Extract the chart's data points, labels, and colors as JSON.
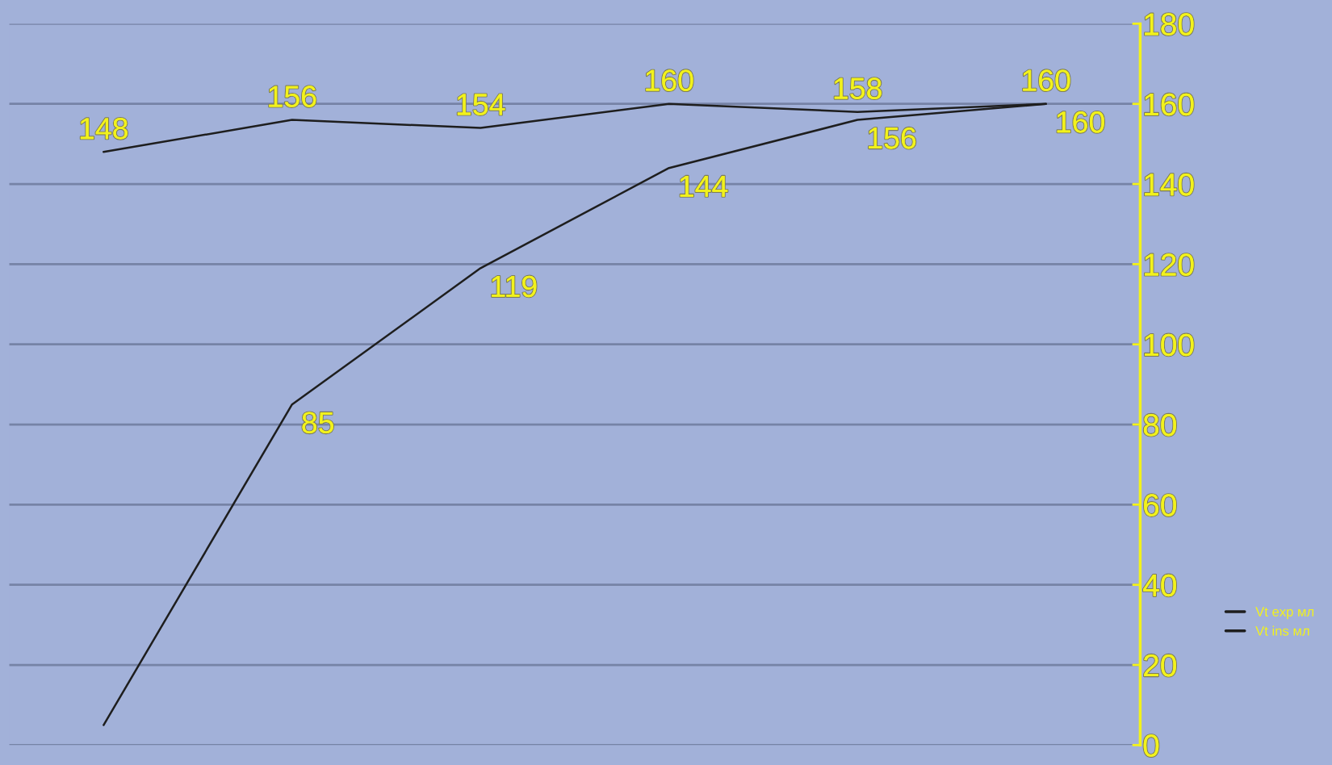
{
  "chart_data": {
    "type": "line",
    "categories": [
      null,
      null,
      null,
      null,
      null,
      null
    ],
    "series": [
      {
        "name": "Vt exp мл",
        "color": "#1e1e1e",
        "values": [
          148,
          156,
          154,
          160,
          158,
          160
        ],
        "value_labels": [
          "148",
          "156",
          "154",
          "160",
          "158",
          "160"
        ]
      },
      {
        "name": "Vt ins мл",
        "color": "#1e1e1e",
        "values": [
          5,
          85,
          119,
          144,
          156,
          160
        ],
        "value_labels": [
          null,
          "85",
          "119",
          "144",
          "156",
          "160"
        ]
      }
    ],
    "ylim": [
      0,
      180
    ],
    "yticks": [
      0,
      20,
      40,
      60,
      80,
      100,
      120,
      140,
      160,
      180
    ],
    "grid": "y",
    "legend": "right",
    "marker": "none",
    "line_style": "solid",
    "tick_labels": "y"
  }
}
